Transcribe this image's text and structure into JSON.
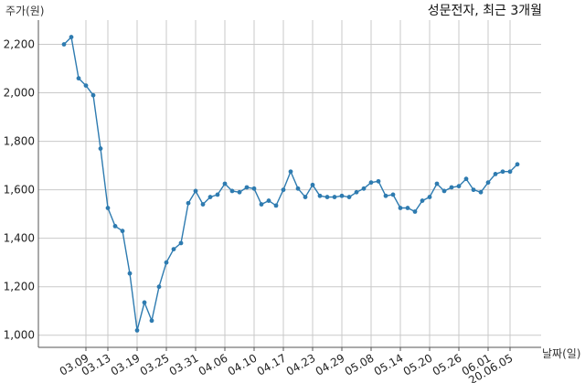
{
  "chart_data": {
    "type": "line",
    "title": "성문전자, 최근 3개월",
    "ylabel": "주가(원)",
    "xlabel": "날짜(일)",
    "ylim": [
      950,
      2300
    ],
    "yticks": [
      1000,
      1200,
      1400,
      1600,
      1800,
      2000,
      2200
    ],
    "ytick_labels": [
      "1,000",
      "1,200",
      "1,400",
      "1,600",
      "1,800",
      "2,000",
      "2,200"
    ],
    "xtick_labels": [
      "03.09",
      "03.13",
      "03.19",
      "03.25",
      "03.31",
      "04.06",
      "04.10",
      "04.17",
      "04.23",
      "04.29",
      "05.08",
      "05.14",
      "05.20",
      "05.26",
      "06.01",
      "20.06.05"
    ],
    "xtick_index": [
      3,
      6,
      10,
      14,
      18,
      22,
      26,
      30,
      34,
      38,
      42,
      46,
      50,
      54,
      58,
      61
    ],
    "grid": true,
    "color": "#2e7bb0",
    "series": [
      {
        "values": [
          2200,
          2230,
          2060,
          2030,
          1990,
          1770,
          1525,
          1450,
          1430,
          1255,
          1020,
          1135,
          1060,
          1200,
          1300,
          1355,
          1380,
          1545,
          1595,
          1540,
          1570,
          1580,
          1625,
          1595,
          1590,
          1610,
          1605,
          1540,
          1555,
          1535,
          1600,
          1675,
          1605,
          1570,
          1620,
          1575,
          1570,
          1570,
          1575,
          1570,
          1590,
          1605,
          1630,
          1635,
          1575,
          1580,
          1525,
          1525,
          1510,
          1555,
          1570,
          1625,
          1595,
          1610,
          1615,
          1645,
          1600,
          1590,
          1630,
          1665,
          1675,
          1675,
          1705
        ]
      }
    ]
  }
}
